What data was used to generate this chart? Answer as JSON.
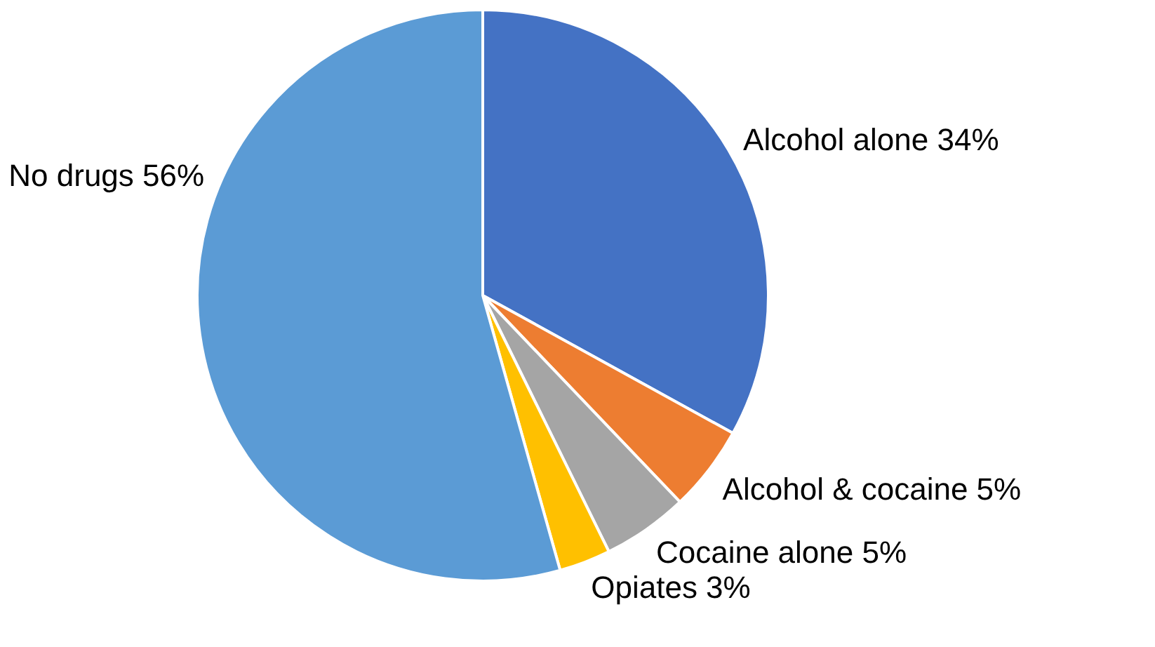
{
  "chart_data": {
    "type": "pie",
    "categories": [
      "Alcohol alone",
      "Alcohol & cocaine",
      "Cocaine alone",
      "Opiates",
      "No drugs"
    ],
    "values": [
      34,
      5,
      5,
      3,
      56
    ],
    "value_labels": [
      "34%",
      "5%",
      "5%",
      "3%",
      "56%"
    ],
    "colors": [
      "#4472c4",
      "#ed7d31",
      "#a5a5a5",
      "#ffc000",
      "#5b9bd5"
    ],
    "legend": false
  }
}
